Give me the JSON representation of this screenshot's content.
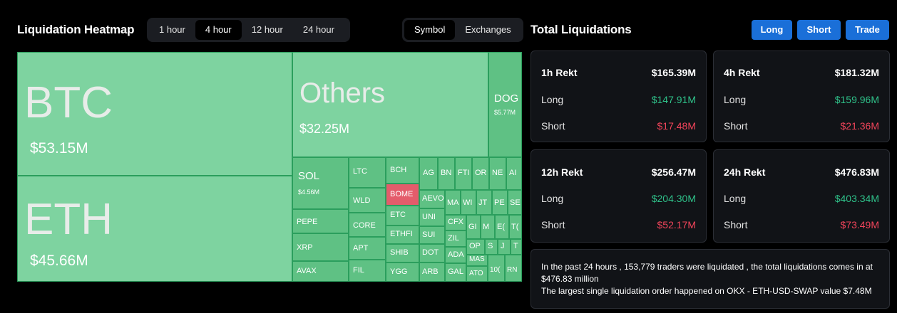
{
  "heatmap": {
    "title": "Liquidation Heatmap",
    "timeframes": [
      "1 hour",
      "4 hour",
      "12 hour",
      "24 hour"
    ],
    "active_timeframe": "4 hour",
    "view_toggle": [
      "Symbol",
      "Exchanges"
    ],
    "active_view": "Symbol",
    "tiles": [
      {
        "symbol": "BTC",
        "value": "$53.15M"
      },
      {
        "symbol": "ETH",
        "value": "$45.66M"
      },
      {
        "symbol": "Others",
        "value": "$32.25M"
      },
      {
        "symbol": "DOG",
        "value": "$5.77M"
      },
      {
        "symbol": "SOL",
        "value": "$4.56M"
      },
      {
        "symbol": "PEPE"
      },
      {
        "symbol": "XRP"
      },
      {
        "symbol": "AVAX"
      },
      {
        "symbol": "LTC"
      },
      {
        "symbol": "WLD"
      },
      {
        "symbol": "CORE"
      },
      {
        "symbol": "APT"
      },
      {
        "symbol": "FIL"
      },
      {
        "symbol": "BCH"
      },
      {
        "symbol": "BOME"
      },
      {
        "symbol": "ETC"
      },
      {
        "symbol": "ETHFI"
      },
      {
        "symbol": "SHIB"
      },
      {
        "symbol": "YGG"
      },
      {
        "symbol": "AEVO"
      },
      {
        "symbol": "UNI"
      },
      {
        "symbol": "SUI"
      },
      {
        "symbol": "DOT"
      },
      {
        "symbol": "ARB"
      },
      {
        "symbol": "CFX"
      },
      {
        "symbol": "ZIL"
      },
      {
        "symbol": "ADA"
      },
      {
        "symbol": "GAL"
      },
      {
        "symbol": "AG"
      },
      {
        "symbol": "BN"
      },
      {
        "symbol": "FTI"
      },
      {
        "symbol": "OR"
      },
      {
        "symbol": "NE"
      },
      {
        "symbol": "AI"
      },
      {
        "symbol": "MA"
      },
      {
        "symbol": "WI"
      },
      {
        "symbol": "JT"
      },
      {
        "symbol": "PE"
      },
      {
        "symbol": "SE"
      },
      {
        "symbol": "GI"
      },
      {
        "symbol": "M"
      },
      {
        "symbol": "E("
      },
      {
        "symbol": "T("
      },
      {
        "symbol": "OP"
      },
      {
        "symbol": "S"
      },
      {
        "symbol": "J"
      },
      {
        "symbol": "T"
      },
      {
        "symbol": "MAS"
      },
      {
        "symbol": "ATO"
      },
      {
        "symbol": "10("
      },
      {
        "symbol": "RN"
      }
    ]
  },
  "totals": {
    "title": "Total Liquidations",
    "buttons": [
      "Long",
      "Short",
      "Trade"
    ],
    "cards": [
      {
        "head": "1h Rekt",
        "total": "$165.39M",
        "long_label": "Long",
        "long": "$147.91M",
        "short_label": "Short",
        "short": "$17.48M"
      },
      {
        "head": "4h Rekt",
        "total": "$181.32M",
        "long_label": "Long",
        "long": "$159.96M",
        "short_label": "Short",
        "short": "$21.36M"
      },
      {
        "head": "12h Rekt",
        "total": "$256.47M",
        "long_label": "Long",
        "long": "$204.30M",
        "short_label": "Short",
        "short": "$52.17M"
      },
      {
        "head": "24h Rekt",
        "total": "$476.83M",
        "long_label": "Long",
        "long": "$403.34M",
        "short_label": "Short",
        "short": "$73.49M"
      }
    ],
    "summary_line1": "In the past 24 hours , 153,779 traders were liquidated , the total liquidations comes in at $476.83 million",
    "summary_line2": "The largest single liquidation order happened on OKX - ETH-USD-SWAP value $7.48M"
  },
  "colors": {
    "tile": "#7ed3a0",
    "tile_dark": "#5fc184",
    "tile_red": "#e45c6b",
    "accent": "#1a6fd8",
    "long": "#2fc28a",
    "short": "#f0445a"
  }
}
